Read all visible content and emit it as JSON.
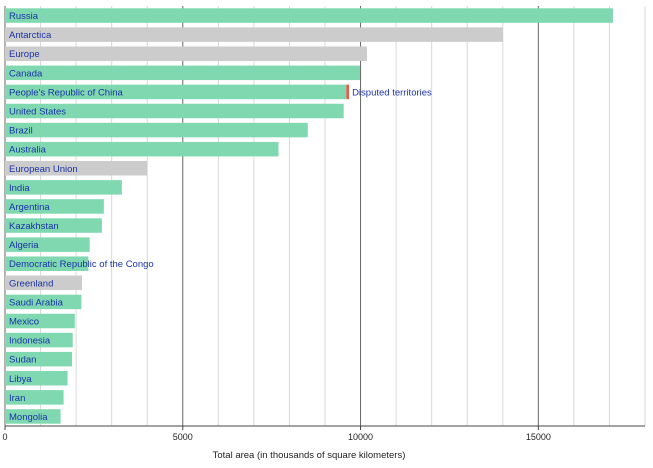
{
  "chart_data": {
    "type": "bar",
    "orientation": "horizontal",
    "xlabel": "Total area (in thousands of square kilometers)",
    "xlim": [
      0,
      18000
    ],
    "xticks": [
      0,
      5000,
      10000,
      15000
    ],
    "minor_tick_step": 1000,
    "grid": true,
    "colors": {
      "country": "#80d8b0",
      "region": "#cccccc",
      "disputed": "#d9644a",
      "label": "#1a33a8",
      "major_grid": "#666666",
      "minor_grid": "#d8d8d8"
    },
    "bars": [
      {
        "label": "Russia",
        "value": 17098,
        "kind": "country"
      },
      {
        "label": "Antarctica",
        "value": 14000,
        "kind": "region"
      },
      {
        "label": "Europe",
        "value": 10180,
        "kind": "region"
      },
      {
        "label": "Canada",
        "value": 9985,
        "kind": "country"
      },
      {
        "label": "People's Republic of China",
        "value": 9597,
        "kind": "country",
        "disputed": 80
      },
      {
        "label": "United States",
        "value": 9526,
        "kind": "country"
      },
      {
        "label": "Brazil",
        "value": 8516,
        "kind": "country"
      },
      {
        "label": "Australia",
        "value": 7692,
        "kind": "country"
      },
      {
        "label": "European Union",
        "value": 4000,
        "kind": "region"
      },
      {
        "label": "India",
        "value": 3287,
        "kind": "country"
      },
      {
        "label": "Argentina",
        "value": 2780,
        "kind": "country"
      },
      {
        "label": "Kazakhstan",
        "value": 2725,
        "kind": "country"
      },
      {
        "label": "Algeria",
        "value": 2382,
        "kind": "country"
      },
      {
        "label": "Democratic Republic of the Congo",
        "value": 2345,
        "kind": "country"
      },
      {
        "label": "Greenland",
        "value": 2166,
        "kind": "region"
      },
      {
        "label": "Saudi Arabia",
        "value": 2150,
        "kind": "country"
      },
      {
        "label": "Mexico",
        "value": 1964,
        "kind": "country"
      },
      {
        "label": "Indonesia",
        "value": 1905,
        "kind": "country"
      },
      {
        "label": "Sudan",
        "value": 1886,
        "kind": "country"
      },
      {
        "label": "Libya",
        "value": 1760,
        "kind": "country"
      },
      {
        "label": "Iran",
        "value": 1648,
        "kind": "country"
      },
      {
        "label": "Mongolia",
        "value": 1564,
        "kind": "country"
      }
    ],
    "annotations": [
      {
        "text": "Disputed territories",
        "bar": "People's Republic of China"
      }
    ]
  }
}
